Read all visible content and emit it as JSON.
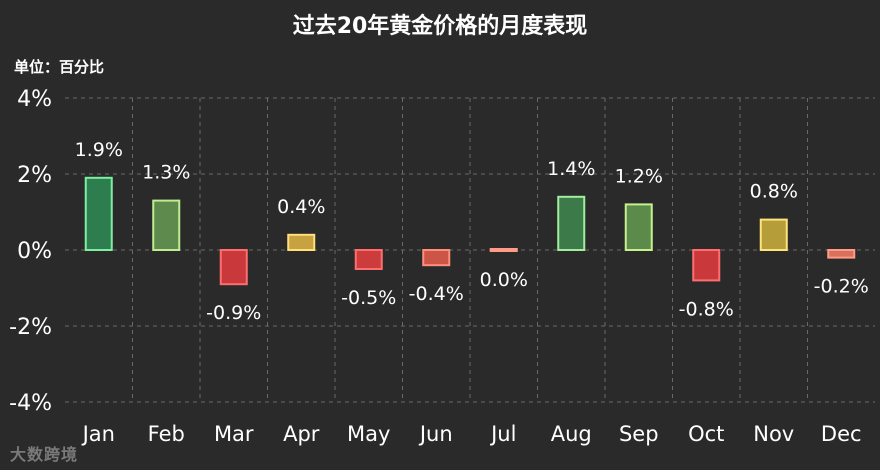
{
  "chart_data": {
    "type": "bar",
    "title": "过去20年黄金价格的月度表现",
    "unit_label": "单位：百分比",
    "categories": [
      "Jan",
      "Feb",
      "Mar",
      "Apr",
      "May",
      "Jun",
      "Jul",
      "Aug",
      "Sep",
      "Oct",
      "Nov",
      "Dec"
    ],
    "values": [
      1.9,
      1.3,
      -0.9,
      0.4,
      -0.5,
      -0.4,
      0.0,
      1.4,
      1.2,
      -0.8,
      0.8,
      -0.2
    ],
    "data_labels": [
      "1.9%",
      "1.3%",
      "-0.9%",
      "0.4%",
      "-0.5%",
      "-0.4%",
      "0.0%",
      "1.4%",
      "1.2%",
      "-0.8%",
      "0.8%",
      "-0.2%"
    ],
    "ylim": [
      -4,
      4
    ],
    "yticks": [
      4,
      2,
      0,
      -2,
      -4
    ],
    "ytick_labels": [
      "4%",
      "2%",
      "0%",
      "-2%",
      "-4%"
    ],
    "grid": true,
    "bar_colors": [
      {
        "fill": "#2e7d4f",
        "stroke": "#7cf0a0"
      },
      {
        "fill": "#5f8a4d",
        "stroke": "#c2ec93"
      },
      {
        "fill": "#c9393b",
        "stroke": "#ff6e6e"
      },
      {
        "fill": "#c8a240",
        "stroke": "#ffe07a"
      },
      {
        "fill": "#cc3c3c",
        "stroke": "#ff6e6e"
      },
      {
        "fill": "#cc5548",
        "stroke": "#ff8f7d"
      },
      {
        "fill": "#d9705c",
        "stroke": "#ff9b86"
      },
      {
        "fill": "#3d7a4a",
        "stroke": "#a2ee9e"
      },
      {
        "fill": "#5c8a4b",
        "stroke": "#c8f08f"
      },
      {
        "fill": "#c9393b",
        "stroke": "#ff6e6e"
      },
      {
        "fill": "#b59d3a",
        "stroke": "#ffe47c"
      },
      {
        "fill": "#d9705c",
        "stroke": "#ff9b86"
      }
    ]
  },
  "watermark": "大数跨境",
  "colors": {
    "background": "#2a2a2a",
    "grid": "#6a6a6a",
    "text": "#ffffff"
  }
}
